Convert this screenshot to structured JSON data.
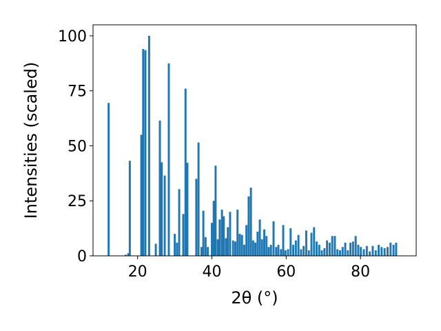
{
  "chart_data": {
    "type": "bar",
    "title": "",
    "xlabel": "2θ (°)",
    "ylabel": "Intensities (scaled)",
    "xlim": [
      8,
      95
    ],
    "ylim": [
      0,
      105
    ],
    "x_ticks": [
      20,
      40,
      60,
      80
    ],
    "y_ticks": [
      0,
      25,
      50,
      75,
      100
    ],
    "bar_width": 0.55,
    "color": "#1f77b4",
    "grid": false,
    "legend": "none",
    "x": [
      12.2,
      16.8,
      17.5,
      17.9,
      21.0,
      21.5,
      22.1,
      23.1,
      24.9,
      26.0,
      26.5,
      27.3,
      28.4,
      30.0,
      30.6,
      31.2,
      32.3,
      32.9,
      33.4,
      35.8,
      36.4,
      37.2,
      37.7,
      38.3,
      38.9,
      40.0,
      40.5,
      41.0,
      41.6,
      42.1,
      42.7,
      43.2,
      43.8,
      44.3,
      44.9,
      45.7,
      46.3,
      46.9,
      47.5,
      48.1,
      48.7,
      49.3,
      49.9,
      50.5,
      51.1,
      51.7,
      52.3,
      52.9,
      53.5,
      54.1,
      54.7,
      55.3,
      55.9,
      56.6,
      57.3,
      57.9,
      58.6,
      59.2,
      59.8,
      60.5,
      61.2,
      61.9,
      62.6,
      63.3,
      64.0,
      64.7,
      65.4,
      66.1,
      66.8,
      67.5,
      68.2,
      68.9,
      69.6,
      70.3,
      71.0,
      71.7,
      72.4,
      73.1,
      73.8,
      74.5,
      75.2,
      75.9,
      76.6,
      77.3,
      78.0,
      78.7,
      79.4,
      80.1,
      80.9,
      81.7,
      82.5,
      83.3,
      84.1,
      84.9,
      85.7,
      86.5,
      87.3,
      88.1,
      88.9,
      89.6
    ],
    "values": [
      69.5,
      0.5,
      1.2,
      43.2,
      55.0,
      94.0,
      93.5,
      100.0,
      5.5,
      61.5,
      42.5,
      36.5,
      87.5,
      10.0,
      6.0,
      30.3,
      19.0,
      76.0,
      42.3,
      35.0,
      51.5,
      4.0,
      20.5,
      8.5,
      4.0,
      15.0,
      25.0,
      41.0,
      7.5,
      16.5,
      21.0,
      18.0,
      8.0,
      13.0,
      20.0,
      7.0,
      6.5,
      21.0,
      10.0,
      9.5,
      5.0,
      14.0,
      27.0,
      31.0,
      7.0,
      6.0,
      11.0,
      16.5,
      7.5,
      12.0,
      9.0,
      4.0,
      5.0,
      15.7,
      4.0,
      5.0,
      3.0,
      14.0,
      2.5,
      3.0,
      12.5,
      5.0,
      7.0,
      9.5,
      3.0,
      4.5,
      11.5,
      2.5,
      10.5,
      13.0,
      6.5,
      5.0,
      2.5,
      3.5,
      7.0,
      6.0,
      9.0,
      9.0,
      3.0,
      2.5,
      4.0,
      6.0,
      2.5,
      6.0,
      6.5,
      9.0,
      5.0,
      4.0,
      3.0,
      4.5,
      2.0,
      4.5,
      2.5,
      5.0,
      4.0,
      3.5,
      4.0,
      6.0,
      5.0,
      6.0
    ]
  }
}
